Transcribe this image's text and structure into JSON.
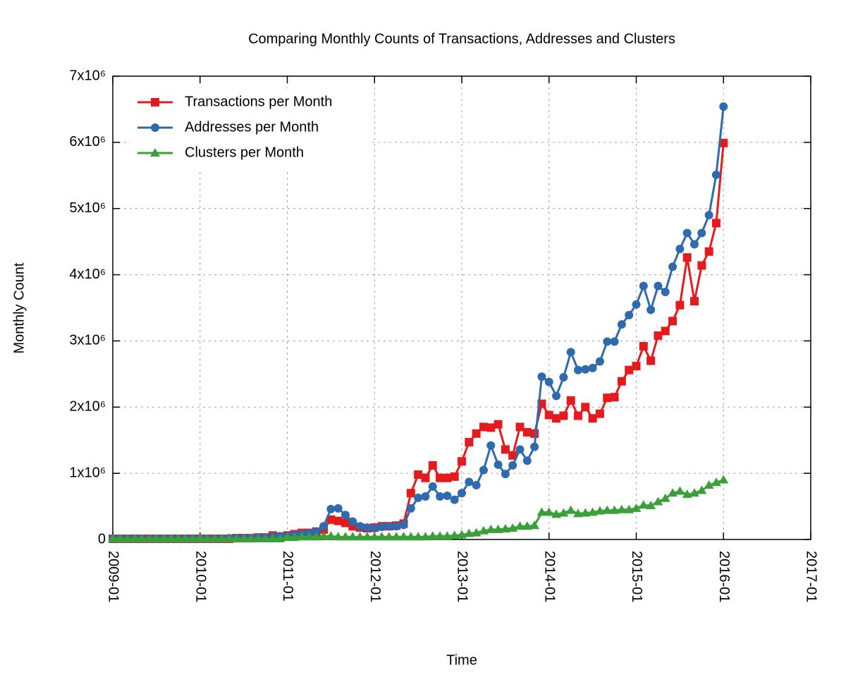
{
  "chart_data": {
    "type": "line",
    "title": "Comparing Monthly Counts of Transactions, Addresses and Clusters",
    "x_label": "Time",
    "y_label": "Monthly Count",
    "x": [
      "2009-01",
      "2009-02",
      "2009-03",
      "2009-04",
      "2009-05",
      "2009-06",
      "2009-07",
      "2009-08",
      "2009-09",
      "2009-10",
      "2009-11",
      "2009-12",
      "2010-01",
      "2010-02",
      "2010-03",
      "2010-04",
      "2010-05",
      "2010-06",
      "2010-07",
      "2010-08",
      "2010-09",
      "2010-10",
      "2010-11",
      "2010-12",
      "2011-01",
      "2011-02",
      "2011-03",
      "2011-04",
      "2011-05",
      "2011-06",
      "2011-07",
      "2011-08",
      "2011-09",
      "2011-10",
      "2011-11",
      "2011-12",
      "2012-01",
      "2012-02",
      "2012-03",
      "2012-04",
      "2012-05",
      "2012-06",
      "2012-07",
      "2012-08",
      "2012-09",
      "2012-10",
      "2012-11",
      "2012-12",
      "2013-01",
      "2013-02",
      "2013-03",
      "2013-04",
      "2013-05",
      "2013-06",
      "2013-07",
      "2013-08",
      "2013-09",
      "2013-10",
      "2013-11",
      "2013-12",
      "2014-01",
      "2014-02",
      "2014-03",
      "2014-04",
      "2014-05",
      "2014-06",
      "2014-07",
      "2014-08",
      "2014-09",
      "2014-10",
      "2014-11",
      "2014-12",
      "2015-01",
      "2015-02",
      "2015-03",
      "2015-04",
      "2015-05",
      "2015-06",
      "2015-07",
      "2015-08",
      "2015-09",
      "2015-10",
      "2015-11",
      "2015-12",
      "2016-01"
    ],
    "series": [
      {
        "name": "Transactions per Month",
        "color": "#e41a1c",
        "marker": "square",
        "values": [
          10000,
          10000,
          10000,
          10000,
          10000,
          10000,
          10000,
          10000,
          10000,
          10000,
          10000,
          10000,
          10000,
          10000,
          10000,
          10000,
          10000,
          20000,
          20000,
          20000,
          30000,
          30000,
          60000,
          40000,
          60000,
          80000,
          100000,
          100000,
          120000,
          150000,
          300000,
          280000,
          250000,
          200000,
          180000,
          170000,
          180000,
          200000,
          200000,
          210000,
          240000,
          700000,
          980000,
          930000,
          1120000,
          930000,
          930000,
          950000,
          1180000,
          1470000,
          1600000,
          1700000,
          1690000,
          1740000,
          1360000,
          1270000,
          1700000,
          1620000,
          1600000,
          2050000,
          1880000,
          1830000,
          1870000,
          2100000,
          1870000,
          2000000,
          1830000,
          1900000,
          2140000,
          2150000,
          2390000,
          2560000,
          2620000,
          2920000,
          2700000,
          3080000,
          3150000,
          3300000,
          3540000,
          4260000,
          3600000,
          4140000,
          4350000,
          4780000,
          5990000
        ]
      },
      {
        "name": "Addresses per Month",
        "color": "#2e6aad",
        "marker": "circle",
        "values": [
          10000,
          10000,
          10000,
          10000,
          10000,
          10000,
          10000,
          10000,
          10000,
          10000,
          10000,
          10000,
          10000,
          10000,
          10000,
          10000,
          20000,
          20000,
          20000,
          20000,
          30000,
          30000,
          40000,
          50000,
          50000,
          70000,
          80000,
          100000,
          120000,
          200000,
          460000,
          470000,
          370000,
          270000,
          200000,
          180000,
          170000,
          190000,
          200000,
          200000,
          220000,
          470000,
          630000,
          650000,
          800000,
          650000,
          660000,
          600000,
          700000,
          870000,
          820000,
          1050000,
          1420000,
          1130000,
          990000,
          1120000,
          1360000,
          1190000,
          1400000,
          2460000,
          2380000,
          2170000,
          2450000,
          2830000,
          2560000,
          2570000,
          2590000,
          2690000,
          2990000,
          2990000,
          3250000,
          3390000,
          3550000,
          3830000,
          3470000,
          3830000,
          3740000,
          4120000,
          4390000,
          4630000,
          4460000,
          4630000,
          4900000,
          5510000,
          6540000
        ]
      },
      {
        "name": "Clusters per Month",
        "color": "#3ca03a",
        "marker": "triangle",
        "values": [
          10000,
          10000,
          10000,
          10000,
          10000,
          10000,
          10000,
          10000,
          10000,
          10000,
          10000,
          10000,
          10000,
          10000,
          10000,
          10000,
          10000,
          10000,
          10000,
          10000,
          10000,
          10000,
          10000,
          10000,
          30000,
          30000,
          40000,
          40000,
          40000,
          50000,
          50000,
          40000,
          40000,
          40000,
          40000,
          40000,
          40000,
          40000,
          40000,
          40000,
          40000,
          40000,
          40000,
          40000,
          50000,
          50000,
          50000,
          60000,
          70000,
          90000,
          100000,
          130000,
          150000,
          150000,
          160000,
          170000,
          200000,
          200000,
          210000,
          410000,
          410000,
          380000,
          400000,
          440000,
          390000,
          400000,
          410000,
          430000,
          440000,
          440000,
          450000,
          450000,
          470000,
          520000,
          510000,
          570000,
          620000,
          700000,
          730000,
          680000,
          700000,
          740000,
          820000,
          860000,
          900000
        ]
      }
    ],
    "xlim": [
      "2009-01",
      "2017-01"
    ],
    "xticks": [
      "2009-01",
      "2010-01",
      "2011-01",
      "2012-01",
      "2013-01",
      "2014-01",
      "2015-01",
      "2016-01",
      "2017-01"
    ],
    "ylim": [
      0,
      7000000
    ],
    "yticks": [
      0,
      {
        "value": 1000000,
        "label": "1x10⁶"
      },
      {
        "value": 2000000,
        "label": "2x10⁶"
      },
      {
        "value": 3000000,
        "label": "3x10⁶"
      },
      {
        "value": 4000000,
        "label": "4x10⁶"
      },
      {
        "value": 5000000,
        "label": "5x10⁶"
      },
      {
        "value": 6000000,
        "label": "6x10⁶"
      },
      {
        "value": 7000000,
        "label": "7x10⁶"
      }
    ],
    "grid": true,
    "legend": "upper-left"
  }
}
